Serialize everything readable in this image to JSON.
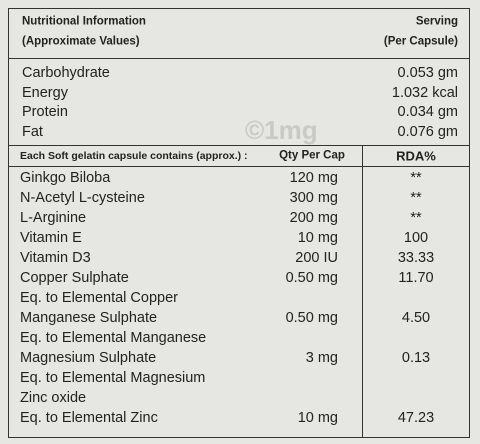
{
  "header": {
    "title": "Nutritional Information",
    "subtitle": "(Approximate Values)",
    "serving": "Serving",
    "serving_unit": "(Per Capsule)"
  },
  "nutrients": [
    [
      "Carbohydrate",
      "0.053 gm"
    ],
    [
      "Energy",
      "1.032 kcal"
    ],
    [
      "Protein",
      "0.034 gm"
    ],
    [
      "Fat",
      "0.076 gm"
    ]
  ],
  "watermark": "©1mg",
  "table": {
    "columns": [
      "Each Soft gelatin capsule contains (approx.) :",
      "Qty Per Cap",
      "RDA%"
    ],
    "rows": [
      [
        "Ginkgo Biloba",
        "120 mg",
        "**"
      ],
      [
        "N-Acetyl L-cysteine",
        "300 mg",
        "**"
      ],
      [
        "L-Arginine",
        "200 mg",
        "**"
      ],
      [
        "Vitamin E",
        "10 mg",
        "100"
      ],
      [
        "Vitamin D3",
        "200 IU",
        "33.33"
      ],
      [
        "Copper Sulphate",
        "0.50 mg",
        "11.70"
      ],
      [
        "Eq. to Elemental Copper",
        null,
        null
      ],
      [
        "Manganese Sulphate",
        "0.50 mg",
        "4.50"
      ],
      [
        "Eq. to Elemental Manganese",
        null,
        null
      ],
      [
        "Magnesium Sulphate",
        "3 mg",
        "0.13"
      ],
      [
        "Eq. to Elemental Magnesium",
        null,
        null
      ],
      [
        "Zinc oxide",
        null,
        null
      ],
      [
        "Eq. to Elemental Zinc",
        "10 mg",
        "47.23"
      ]
    ]
  }
}
